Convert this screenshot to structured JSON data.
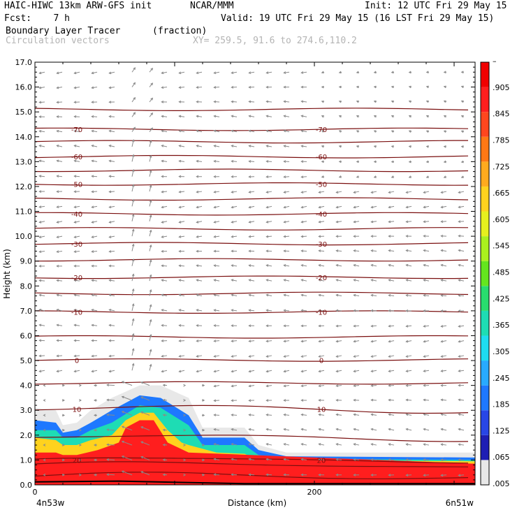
{
  "header": {
    "model": "HAIC-HIWC 13km ARW-GFS init",
    "org": "NCAR/MMM",
    "init": "Init: 12 UTC Fri 29 May 15",
    "fcst": "Fcst:    7 h",
    "valid": "Valid: 19 UTC Fri 29 May 15 (16 LST Fri 29 May 15)",
    "field": "Boundary Layer Tracer",
    "units": "(fraction)",
    "vectors": "Circulation vectors",
    "xy": "XY= 259.5, 91.6 to 274.6,110.2"
  },
  "colors": {
    "contour": "#7a0f0f",
    "vector": "#8a8a8a",
    "scale": [
      "#ffffff",
      "#e8e8e8",
      "#1e1eb4",
      "#2846e6",
      "#1e78ff",
      "#28aaff",
      "#1edcf0",
      "#1edcb4",
      "#28dc6e",
      "#64e61e",
      "#aaf01e",
      "#e6f01e",
      "#ffd21e",
      "#ffaa1e",
      "#ff7814",
      "#ff461e",
      "#ff1e1e",
      "#f00000"
    ]
  },
  "chart_data": {
    "type": "heatmap",
    "title": "Boundary Layer Tracer",
    "units": "(fraction)",
    "xlabel": "Distance (km)",
    "ylabel": "Height (km)",
    "xlim": [
      0,
      315
    ],
    "ylim": [
      0,
      17
    ],
    "x_ticks": [
      {
        "value": 0,
        "label": "0"
      },
      {
        "value": 200,
        "label": "200"
      }
    ],
    "x_end_labels": {
      "left": "4n53w",
      "right": "6n51w"
    },
    "y_ticks": [
      "0.0",
      "1.0",
      "2.0",
      "3.0",
      "4.0",
      "5.0",
      "6.0",
      "7.0",
      "8.0",
      "9.0",
      "10.0",
      "11.0",
      "12.0",
      "13.0",
      "14.0",
      "15.0",
      "16.0",
      "17.0"
    ],
    "colorbar_labels": [
      ".005",
      ".065",
      ".125",
      ".185",
      ".245",
      ".305",
      ".365",
      ".425",
      ".485",
      ".545",
      ".605",
      ".665",
      ".725",
      ".785",
      ".845",
      ".905",
      "–"
    ],
    "tracer_layers": [
      {
        "level": 0.005,
        "profile": [
          [
            0,
            3.1
          ],
          [
            15,
            3.0
          ],
          [
            20,
            2.4
          ],
          [
            30,
            2.5
          ],
          [
            40,
            3.0
          ],
          [
            55,
            3.5
          ],
          [
            75,
            4.0
          ],
          [
            90,
            4.0
          ],
          [
            110,
            3.5
          ],
          [
            120,
            2.3
          ],
          [
            150,
            2.3
          ],
          [
            160,
            1.6
          ],
          [
            180,
            1.3
          ],
          [
            315,
            1.3
          ]
        ]
      },
      {
        "level": 0.185,
        "profile": [
          [
            0,
            2.6
          ],
          [
            15,
            2.5
          ],
          [
            20,
            2.1
          ],
          [
            30,
            2.2
          ],
          [
            40,
            2.5
          ],
          [
            55,
            3.0
          ],
          [
            75,
            3.6
          ],
          [
            90,
            3.5
          ],
          [
            110,
            2.8
          ],
          [
            120,
            1.9
          ],
          [
            150,
            1.9
          ],
          [
            160,
            1.4
          ],
          [
            180,
            1.15
          ],
          [
            315,
            1.1
          ]
        ]
      },
      {
        "level": 0.365,
        "profile": [
          [
            0,
            2.2
          ],
          [
            15,
            2.2
          ],
          [
            20,
            1.9
          ],
          [
            30,
            1.9
          ],
          [
            40,
            2.2
          ],
          [
            55,
            2.5
          ],
          [
            75,
            3.2
          ],
          [
            90,
            3.1
          ],
          [
            110,
            2.4
          ],
          [
            120,
            1.6
          ],
          [
            150,
            1.6
          ],
          [
            160,
            1.2
          ],
          [
            180,
            1.05
          ],
          [
            315,
            1.0
          ]
        ]
      },
      {
        "level": 0.665,
        "profile": [
          [
            0,
            1.9
          ],
          [
            15,
            1.8
          ],
          [
            20,
            1.6
          ],
          [
            30,
            1.6
          ],
          [
            40,
            1.8
          ],
          [
            55,
            2.0
          ],
          [
            65,
            2.6
          ],
          [
            75,
            2.9
          ],
          [
            85,
            2.9
          ],
          [
            95,
            2.2
          ],
          [
            105,
            1.7
          ],
          [
            110,
            1.6
          ],
          [
            130,
            1.3
          ],
          [
            150,
            1.25
          ],
          [
            160,
            1.0
          ],
          [
            315,
            0.95
          ]
        ]
      },
      {
        "level": 0.905,
        "profile": [
          [
            0,
            1.3
          ],
          [
            15,
            1.3
          ],
          [
            20,
            1.2
          ],
          [
            30,
            1.2
          ],
          [
            45,
            1.4
          ],
          [
            60,
            1.7
          ],
          [
            65,
            2.3
          ],
          [
            75,
            2.6
          ],
          [
            85,
            2.6
          ],
          [
            95,
            1.7
          ],
          [
            110,
            1.3
          ],
          [
            315,
            0.85
          ]
        ]
      }
    ],
    "theta_contours": [
      {
        "z": 0.35,
        "label": ""
      },
      {
        "z": 0.8,
        "label": ""
      },
      {
        "z": 1.0,
        "label": "20"
      },
      {
        "z": 1.9,
        "label": ""
      },
      {
        "z": 3.05,
        "label": "10"
      },
      {
        "z": 4.1,
        "label": ""
      },
      {
        "z": 5.02,
        "label": "0"
      },
      {
        "z": 5.95,
        "label": ""
      },
      {
        "z": 6.95,
        "label": "-10"
      },
      {
        "z": 7.7,
        "label": ""
      },
      {
        "z": 8.35,
        "label": "-20"
      },
      {
        "z": 9.05,
        "label": ""
      },
      {
        "z": 9.7,
        "label": "-30"
      },
      {
        "z": 10.3,
        "label": ""
      },
      {
        "z": 10.9,
        "label": "-40"
      },
      {
        "z": 11.5,
        "label": ""
      },
      {
        "z": 12.1,
        "label": "-50"
      },
      {
        "z": 12.65,
        "label": ""
      },
      {
        "z": 13.2,
        "label": "-60"
      },
      {
        "z": 13.8,
        "label": ""
      },
      {
        "z": 14.3,
        "label": "-70"
      },
      {
        "z": 15.1,
        "label": ""
      }
    ]
  }
}
